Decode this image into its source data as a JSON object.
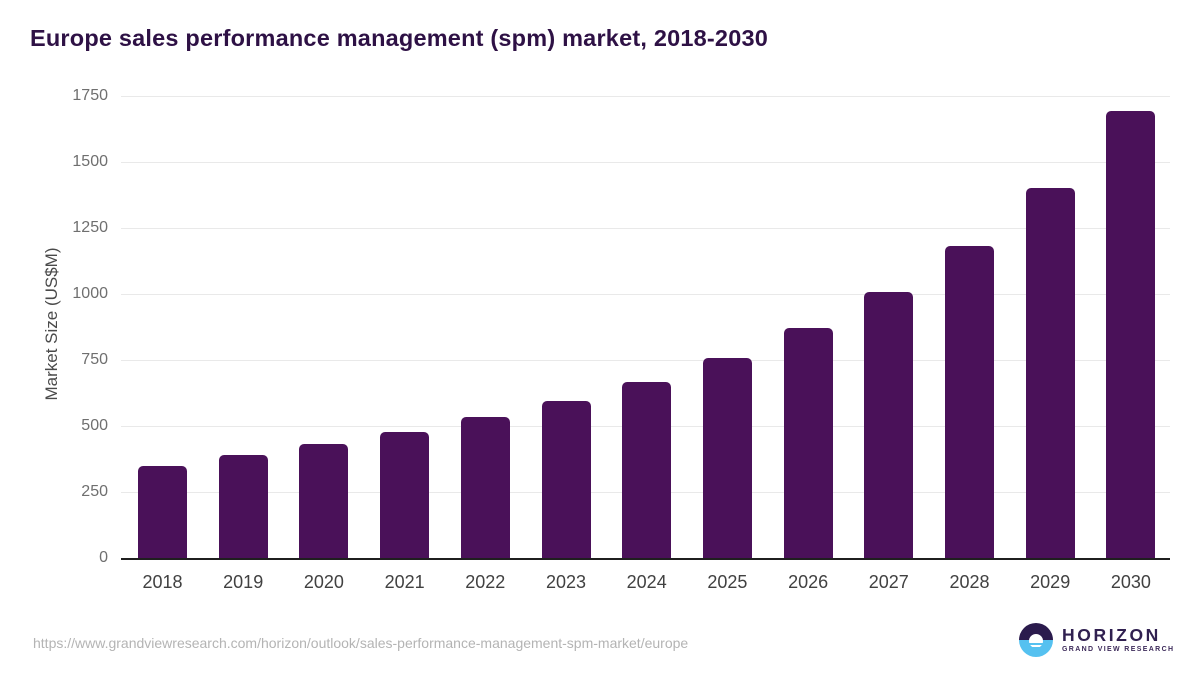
{
  "header": {
    "title": "Europe sales performance management (spm) market, 2018-2030"
  },
  "chart_data": {
    "type": "bar",
    "title": "Europe sales performance management (spm) market, 2018-2030",
    "categories": [
      "2018",
      "2019",
      "2020",
      "2021",
      "2022",
      "2023",
      "2024",
      "2025",
      "2026",
      "2027",
      "2028",
      "2029",
      "2030"
    ],
    "values": [
      350,
      389,
      432,
      476,
      534,
      593,
      668,
      758,
      871,
      1006,
      1181,
      1400,
      1692
    ],
    "xlabel": "",
    "ylabel": "Market Size (US$M)",
    "ylim": [
      0,
      1750
    ],
    "yticks": [
      0,
      250,
      500,
      750,
      1000,
      1250,
      1500,
      1750
    ],
    "grid": "horizontal-light-gray",
    "legend": "none",
    "bar_color": "#4a1159"
  },
  "footer": {
    "source_url": "https://www.grandviewresearch.com/horizon/outlook/sales-performance-management-spm-market/europe",
    "logo": {
      "name": "HORIZON",
      "tagline": "GRAND VIEW RESEARCH",
      "icon": "horizon-sunset-circle-icon"
    }
  },
  "colors": {
    "background": "#ffffff",
    "title_text": "#2e1145",
    "bar": "#4a1159",
    "gridline": "#e9e9e9",
    "axis_line": "#1f1f1f",
    "y_tick_text": "#6f6f6f",
    "x_tick_text": "#414141",
    "url_text": "#b4b4b4",
    "logo_dark_purple": "#2b1b4d",
    "logo_sky_blue": "#55c1f0"
  }
}
